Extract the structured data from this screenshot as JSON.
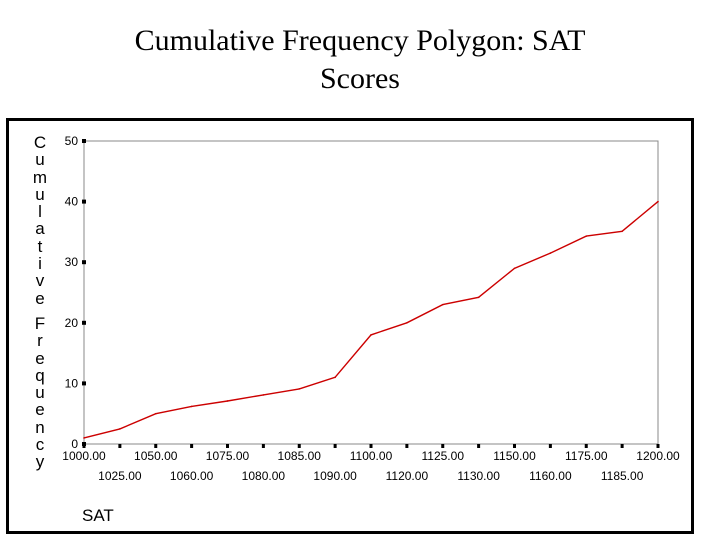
{
  "slide": {
    "title_line1": "Cumulative Frequency Polygon: SAT",
    "title_line2": "Scores"
  },
  "chart_data": {
    "type": "line",
    "title": "Cumulative Frequency Polygon: SAT Scores",
    "xlabel": "SAT",
    "ylabel": "Cumulative Frequency",
    "categories": [
      "1000.00",
      "1025.00",
      "1050.00",
      "1060.00",
      "1075.00",
      "1080.00",
      "1085.00",
      "1090.00",
      "1100.00",
      "1120.00",
      "1125.00",
      "1130.00",
      "1150.00",
      "1160.00",
      "1175.00",
      "1185.00",
      "1200.00"
    ],
    "series": [
      {
        "name": "Cumulative Frequency",
        "color": "#cc0000",
        "values": [
          1,
          2.5,
          5,
          6.2,
          7.1,
          8.1,
          9.1,
          11,
          18,
          20,
          23,
          24.2,
          29,
          31.5,
          34.3,
          35.1,
          40
        ]
      }
    ],
    "ylim": [
      0,
      50
    ],
    "yticks": [
      0,
      10,
      20,
      30,
      40,
      50
    ],
    "grid": false
  },
  "colors": {
    "line": "#cc0000",
    "axis": "#888888",
    "frame": "#000000"
  }
}
